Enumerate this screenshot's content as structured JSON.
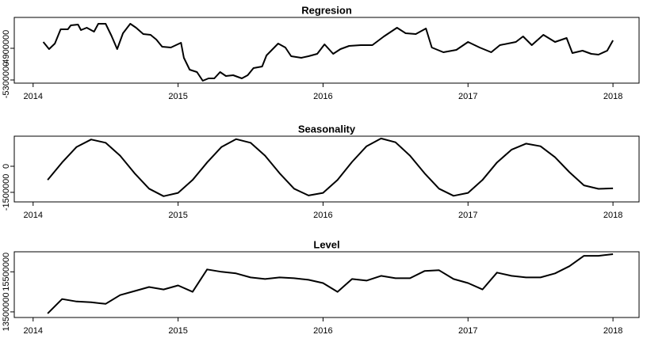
{
  "chart_data": [
    {
      "type": "line",
      "title": "Regresion",
      "color": "#000000",
      "x": [
        2014.07,
        2014.11,
        2014.15,
        2014.19,
        2014.24,
        2014.26,
        2014.31,
        2014.33,
        2014.37,
        2014.42,
        2014.45,
        2014.5,
        2014.54,
        2014.58,
        2014.62,
        2014.67,
        2014.71,
        2014.76,
        2014.81,
        2014.85,
        2014.89,
        2014.95,
        2015.02,
        2015.04,
        2015.08,
        2015.13,
        2015.17,
        2015.21,
        2015.25,
        2015.29,
        2015.33,
        2015.38,
        2015.44,
        2015.48,
        2015.52,
        2015.58,
        2015.61,
        2015.69,
        2015.74,
        2015.78,
        2015.85,
        2015.9,
        2015.96,
        2016.01,
        2016.07,
        2016.12,
        2016.18,
        2016.26,
        2016.34,
        2016.42,
        2016.51,
        2016.57,
        2016.64,
        2016.71,
        2016.75,
        2016.83,
        2016.92,
        2017.0,
        2017.08,
        2017.16,
        2017.22,
        2017.33,
        2017.38,
        2017.44,
        2017.52,
        2017.6,
        2017.68,
        2017.72,
        2017.79,
        2017.85,
        2017.9,
        2017.96,
        2018.0
      ],
      "values": [
        -4820000,
        -4910000,
        -4840000,
        -4660000,
        -4660000,
        -4610000,
        -4600000,
        -4670000,
        -4640000,
        -4690000,
        -4590000,
        -4590000,
        -4740000,
        -4910000,
        -4710000,
        -4590000,
        -4640000,
        -4720000,
        -4730000,
        -4790000,
        -4880000,
        -4890000,
        -4830000,
        -5020000,
        -5170000,
        -5200000,
        -5310000,
        -5280000,
        -5280000,
        -5200000,
        -5250000,
        -5240000,
        -5280000,
        -5240000,
        -5150000,
        -5130000,
        -4990000,
        -4840000,
        -4890000,
        -5000000,
        -5020000,
        -5000000,
        -4970000,
        -4850000,
        -4970000,
        -4910000,
        -4870000,
        -4860000,
        -4860000,
        -4750000,
        -4640000,
        -4710000,
        -4720000,
        -4650000,
        -4890000,
        -4950000,
        -4920000,
        -4820000,
        -4890000,
        -4950000,
        -4860000,
        -4820000,
        -4750000,
        -4860000,
        -4730000,
        -4820000,
        -4770000,
        -4960000,
        -4930000,
        -4970000,
        -4980000,
        -4930000,
        -4800000
      ],
      "xlim": [
        2013.87,
        2018.18
      ],
      "xticks": [
        2014,
        2015,
        2016,
        2017,
        2018
      ],
      "ylim": [
        -5340000,
        -4510000
      ],
      "yticks": [
        -5300000,
        -4900000
      ]
    },
    {
      "type": "line",
      "title": "Seasonality",
      "color": "#000000",
      "x": [
        2014.1,
        2014.2,
        2014.3,
        2014.4,
        2014.5,
        2014.6,
        2014.7,
        2014.8,
        2014.9,
        2015.0,
        2015.1,
        2015.2,
        2015.3,
        2015.4,
        2015.5,
        2015.6,
        2015.7,
        2015.8,
        2015.9,
        2016.0,
        2016.1,
        2016.2,
        2016.3,
        2016.4,
        2016.5,
        2016.6,
        2016.7,
        2016.8,
        2016.9,
        2017.0,
        2017.1,
        2017.2,
        2017.3,
        2017.4,
        2017.5,
        2017.6,
        2017.7,
        2017.8,
        2017.9,
        2018.0
      ],
      "values": [
        -790000,
        220000,
        1110000,
        1540000,
        1350000,
        610000,
        -400000,
        -1290000,
        -1720000,
        -1530000,
        -790000,
        220000,
        1110000,
        1560000,
        1350000,
        610000,
        -400000,
        -1290000,
        -1680000,
        -1530000,
        -790000,
        250000,
        1150000,
        1600000,
        1380000,
        610000,
        -400000,
        -1290000,
        -1700000,
        -1530000,
        -790000,
        220000,
        950000,
        1300000,
        1150000,
        520000,
        -340000,
        -1100000,
        -1300000,
        -1270000
      ],
      "xlim": [
        2013.87,
        2018.18
      ],
      "xticks": [
        2014,
        2015,
        2016,
        2017,
        2018
      ],
      "ylim": [
        -2050000,
        1730000
      ],
      "yticks": [
        -1500000,
        0
      ]
    },
    {
      "type": "line",
      "title": "Level",
      "color": "#000000",
      "x": [
        2014.1,
        2014.2,
        2014.3,
        2014.4,
        2014.5,
        2014.6,
        2014.7,
        2014.8,
        2014.9,
        2015.0,
        2015.1,
        2015.2,
        2015.3,
        2015.4,
        2015.5,
        2015.6,
        2015.7,
        2015.8,
        2015.9,
        2016.0,
        2016.1,
        2016.2,
        2016.3,
        2016.4,
        2016.5,
        2016.6,
        2016.7,
        2016.8,
        2016.9,
        2017.0,
        2017.1,
        2017.2,
        2017.3,
        2017.4,
        2017.5,
        2017.6,
        2017.7,
        2017.8,
        2017.9,
        2018.0
      ],
      "values": [
        13420000,
        14140000,
        14020000,
        13980000,
        13900000,
        14340000,
        14540000,
        14740000,
        14620000,
        14820000,
        14500000,
        15620000,
        15500000,
        15420000,
        15220000,
        15140000,
        15220000,
        15180000,
        15100000,
        14940000,
        14500000,
        15140000,
        15060000,
        15300000,
        15180000,
        15180000,
        15540000,
        15580000,
        15140000,
        14940000,
        14620000,
        15460000,
        15300000,
        15220000,
        15220000,
        15420000,
        15780000,
        16300000,
        16300000,
        16380000
      ],
      "xlim": [
        2013.87,
        2018.18
      ],
      "xticks": [
        2014,
        2015,
        2016,
        2017,
        2018
      ],
      "ylim": [
        13220000,
        16500000
      ],
      "yticks": [
        13500000,
        15500000
      ]
    }
  ]
}
